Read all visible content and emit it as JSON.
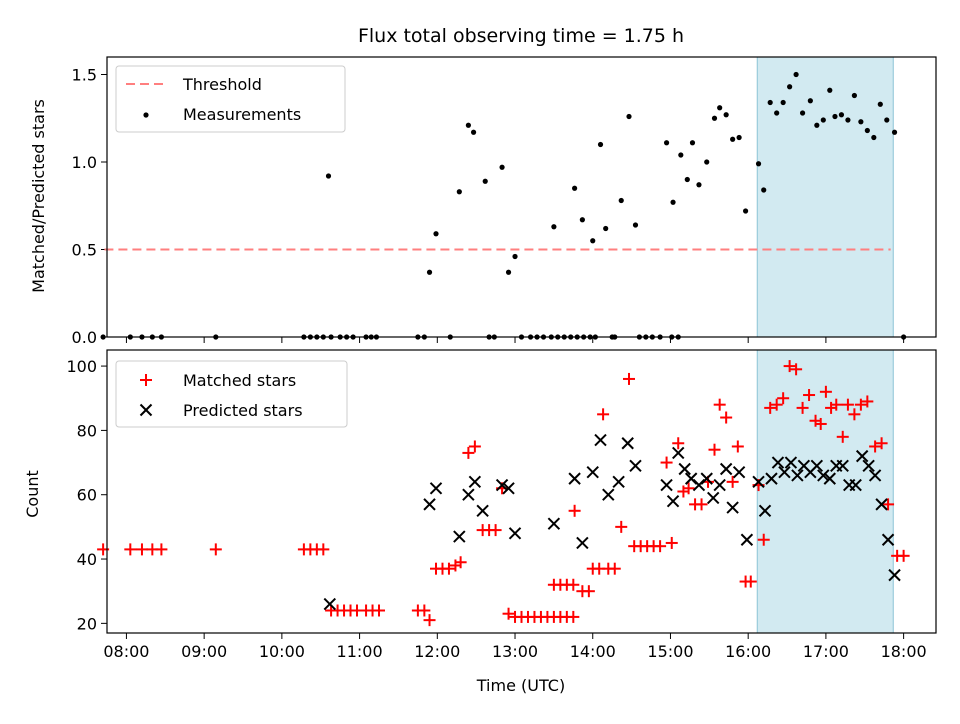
{
  "chart_data": {
    "type": "scatter",
    "title": "Flux total observing time = 1.75 h",
    "xlabel": "Time (UTC)",
    "x_ticks": [
      "08:00",
      "09:00",
      "10:00",
      "11:00",
      "12:00",
      "13:00",
      "14:00",
      "15:00",
      "16:00",
      "17:00",
      "18:00"
    ],
    "x_range": [
      "07:45",
      "18:25"
    ],
    "highlight_span": [
      "16:07",
      "17:52"
    ],
    "highlight_color": "#add8e6",
    "top_panel": {
      "ylabel": "Matched/Predicted stars",
      "ylim": [
        0,
        1.6
      ],
      "yticks": [
        "0.0",
        "0.5",
        "1.0",
        "1.5"
      ],
      "legend_position": "upper left",
      "threshold": {
        "name": "Threshold",
        "value": 0.5,
        "x_range": [
          "07:43",
          "17:50"
        ],
        "color": "#ff7f7f",
        "style": "dashed"
      },
      "measurements": {
        "name": "Measurements",
        "color": "#000000",
        "points": [
          [
            "07:42",
            0
          ],
          [
            "08:03",
            0
          ],
          [
            "08:12",
            0
          ],
          [
            "08:20",
            0
          ],
          [
            "08:27",
            0
          ],
          [
            "09:09",
            0
          ],
          [
            "10:17",
            0
          ],
          [
            "10:22",
            0
          ],
          [
            "10:27",
            0
          ],
          [
            "10:32",
            0
          ],
          [
            "10:38",
            0
          ],
          [
            "10:45",
            0
          ],
          [
            "10:50",
            0
          ],
          [
            "10:55",
            0
          ],
          [
            "11:05",
            0
          ],
          [
            "11:09",
            0
          ],
          [
            "11:13",
            0
          ],
          [
            "11:45",
            0
          ],
          [
            "11:50",
            0
          ],
          [
            "10:36",
            0.92
          ],
          [
            "11:54",
            0.37
          ],
          [
            "11:59",
            0.59
          ],
          [
            "12:17",
            0.83
          ],
          [
            "12:24",
            1.21
          ],
          [
            "12:28",
            1.17
          ],
          [
            "12:37",
            0.89
          ],
          [
            "12:50",
            0.97
          ],
          [
            "12:55",
            0.37
          ],
          [
            "13:00",
            0.46
          ],
          [
            "12:10",
            0
          ],
          [
            "12:40",
            0
          ],
          [
            "12:44",
            0
          ],
          [
            "13:05",
            0
          ],
          [
            "13:12",
            0
          ],
          [
            "13:17",
            0
          ],
          [
            "13:22",
            0
          ],
          [
            "13:28",
            0
          ],
          [
            "13:33",
            0
          ],
          [
            "13:38",
            0
          ],
          [
            "13:43",
            0
          ],
          [
            "13:48",
            0
          ],
          [
            "13:53",
            0
          ],
          [
            "13:58",
            0
          ],
          [
            "14:02",
            0
          ],
          [
            "14:15",
            0
          ],
          [
            "14:36",
            0
          ],
          [
            "14:41",
            0
          ],
          [
            "14:46",
            0
          ],
          [
            "14:52",
            0
          ],
          [
            "15:06",
            0
          ],
          [
            "14:17",
            0
          ],
          [
            "15:01",
            0
          ],
          [
            "13:30",
            0.63
          ],
          [
            "13:46",
            0.85
          ],
          [
            "13:52",
            0.67
          ],
          [
            "14:00",
            0.55
          ],
          [
            "14:06",
            1.1
          ],
          [
            "14:10",
            0.62
          ],
          [
            "14:22",
            0.78
          ],
          [
            "14:28",
            1.26
          ],
          [
            "14:33",
            0.64
          ],
          [
            "14:57",
            1.11
          ],
          [
            "15:02",
            0.77
          ],
          [
            "15:08",
            1.04
          ],
          [
            "15:13",
            0.9
          ],
          [
            "15:17",
            1.11
          ],
          [
            "15:22",
            0.87
          ],
          [
            "15:28",
            1.0
          ],
          [
            "15:34",
            1.25
          ],
          [
            "15:38",
            1.31
          ],
          [
            "15:43",
            1.27
          ],
          [
            "15:48",
            1.13
          ],
          [
            "15:53",
            1.14
          ],
          [
            "15:58",
            0.72
          ],
          [
            "16:08",
            0.99
          ],
          [
            "16:12",
            0.84
          ],
          [
            "16:17",
            1.34
          ],
          [
            "16:22",
            1.28
          ],
          [
            "16:27",
            1.34
          ],
          [
            "16:32",
            1.43
          ],
          [
            "16:37",
            1.5
          ],
          [
            "16:42",
            1.28
          ],
          [
            "16:48",
            1.35
          ],
          [
            "16:53",
            1.21
          ],
          [
            "16:58",
            1.24
          ],
          [
            "17:03",
            1.41
          ],
          [
            "17:07",
            1.26
          ],
          [
            "17:12",
            1.27
          ],
          [
            "17:17",
            1.24
          ],
          [
            "17:22",
            1.38
          ],
          [
            "17:27",
            1.23
          ],
          [
            "17:32",
            1.18
          ],
          [
            "17:37",
            1.14
          ],
          [
            "17:42",
            1.33
          ],
          [
            "17:47",
            1.24
          ],
          [
            "17:53",
            1.17
          ],
          [
            "18:00",
            0
          ]
        ]
      }
    },
    "bottom_panel": {
      "ylabel": "Count",
      "ylim": [
        17,
        105
      ],
      "yticks": [
        "20",
        "40",
        "60",
        "80",
        "100"
      ],
      "legend_position": "upper left",
      "series": [
        {
          "name": "Matched stars",
          "marker": "+",
          "color": "#ff0000",
          "points": [
            [
              "07:42",
              43
            ],
            [
              "08:03",
              43
            ],
            [
              "08:12",
              43
            ],
            [
              "08:20",
              43
            ],
            [
              "08:27",
              43
            ],
            [
              "09:09",
              43
            ],
            [
              "10:17",
              43
            ],
            [
              "10:22",
              43
            ],
            [
              "10:27",
              43
            ],
            [
              "10:32",
              43
            ],
            [
              "10:38",
              24
            ],
            [
              "10:43",
              24
            ],
            [
              "10:48",
              24
            ],
            [
              "10:53",
              24
            ],
            [
              "10:58",
              24
            ],
            [
              "11:05",
              24
            ],
            [
              "11:10",
              24
            ],
            [
              "11:15",
              24
            ],
            [
              "11:45",
              24
            ],
            [
              "11:50",
              24
            ],
            [
              "11:54",
              21
            ],
            [
              "11:59",
              37
            ],
            [
              "12:04",
              37
            ],
            [
              "12:09",
              37
            ],
            [
              "12:14",
              38
            ],
            [
              "12:18",
              39
            ],
            [
              "12:24",
              73
            ],
            [
              "12:29",
              75
            ],
            [
              "12:35",
              49
            ],
            [
              "12:40",
              49
            ],
            [
              "12:45",
              49
            ],
            [
              "12:50",
              62
            ],
            [
              "12:55",
              23
            ],
            [
              "13:00",
              22
            ],
            [
              "13:05",
              22
            ],
            [
              "13:10",
              22
            ],
            [
              "13:15",
              22
            ],
            [
              "13:20",
              22
            ],
            [
              "13:25",
              22
            ],
            [
              "13:30",
              22
            ],
            [
              "13:35",
              22
            ],
            [
              "13:40",
              22
            ],
            [
              "13:45",
              22
            ],
            [
              "13:30",
              32
            ],
            [
              "13:35",
              32
            ],
            [
              "13:40",
              32
            ],
            [
              "13:45",
              32
            ],
            [
              "13:46",
              55
            ],
            [
              "13:52",
              30
            ],
            [
              "13:57",
              30
            ],
            [
              "14:00",
              37
            ],
            [
              "14:05",
              37
            ],
            [
              "14:08",
              85
            ],
            [
              "14:12",
              37
            ],
            [
              "14:17",
              37
            ],
            [
              "14:22",
              50
            ],
            [
              "14:28",
              96
            ],
            [
              "14:32",
              44
            ],
            [
              "14:37",
              44
            ],
            [
              "14:42",
              44
            ],
            [
              "14:47",
              44
            ],
            [
              "14:52",
              44
            ],
            [
              "14:57",
              70
            ],
            [
              "15:01",
              45
            ],
            [
              "15:06",
              76
            ],
            [
              "15:10",
              61
            ],
            [
              "15:14",
              62
            ],
            [
              "15:19",
              57
            ],
            [
              "15:24",
              57
            ],
            [
              "15:29",
              64
            ],
            [
              "15:34",
              74
            ],
            [
              "15:38",
              88
            ],
            [
              "15:43",
              84
            ],
            [
              "15:48",
              64
            ],
            [
              "15:52",
              75
            ],
            [
              "15:58",
              33
            ],
            [
              "16:02",
              33
            ],
            [
              "16:08",
              63
            ],
            [
              "16:12",
              46
            ],
            [
              "16:17",
              87
            ],
            [
              "16:22",
              88
            ],
            [
              "16:27",
              90
            ],
            [
              "16:32",
              100
            ],
            [
              "16:37",
              99
            ],
            [
              "16:42",
              87
            ],
            [
              "16:47",
              91
            ],
            [
              "16:52",
              83
            ],
            [
              "16:56",
              82
            ],
            [
              "17:00",
              92
            ],
            [
              "17:04",
              87
            ],
            [
              "17:08",
              88
            ],
            [
              "17:13",
              78
            ],
            [
              "17:17",
              88
            ],
            [
              "17:22",
              85
            ],
            [
              "17:27",
              88
            ],
            [
              "17:32",
              89
            ],
            [
              "17:38",
              75
            ],
            [
              "17:43",
              76
            ],
            [
              "17:48",
              57
            ],
            [
              "17:55",
              41
            ],
            [
              "18:00",
              41
            ]
          ]
        },
        {
          "name": "Predicted stars",
          "marker": "x",
          "color": "#000000",
          "points": [
            [
              "10:37",
              26
            ],
            [
              "11:54",
              57
            ],
            [
              "11:59",
              62
            ],
            [
              "12:17",
              47
            ],
            [
              "12:24",
              60
            ],
            [
              "12:29",
              64
            ],
            [
              "12:35",
              55
            ],
            [
              "12:50",
              63
            ],
            [
              "12:55",
              62
            ],
            [
              "13:00",
              48
            ],
            [
              "13:30",
              51
            ],
            [
              "13:46",
              65
            ],
            [
              "13:52",
              45
            ],
            [
              "14:00",
              67
            ],
            [
              "14:06",
              77
            ],
            [
              "14:12",
              60
            ],
            [
              "14:20",
              64
            ],
            [
              "14:27",
              76
            ],
            [
              "14:33",
              69
            ],
            [
              "14:57",
              63
            ],
            [
              "15:02",
              58
            ],
            [
              "15:06",
              73
            ],
            [
              "15:11",
              68
            ],
            [
              "15:16",
              65
            ],
            [
              "15:22",
              63
            ],
            [
              "15:28",
              65
            ],
            [
              "15:33",
              59
            ],
            [
              "15:38",
              63
            ],
            [
              "15:43",
              68
            ],
            [
              "15:48",
              56
            ],
            [
              "15:53",
              67
            ],
            [
              "15:59",
              46
            ],
            [
              "16:08",
              64
            ],
            [
              "16:13",
              55
            ],
            [
              "16:18",
              65
            ],
            [
              "16:23",
              70
            ],
            [
              "16:28",
              67
            ],
            [
              "16:33",
              70
            ],
            [
              "16:38",
              66
            ],
            [
              "16:43",
              69
            ],
            [
              "16:48",
              67
            ],
            [
              "16:53",
              69
            ],
            [
              "16:58",
              66
            ],
            [
              "17:03",
              65
            ],
            [
              "17:08",
              69
            ],
            [
              "17:13",
              69
            ],
            [
              "17:18",
              63
            ],
            [
              "17:23",
              63
            ],
            [
              "17:28",
              72
            ],
            [
              "17:33",
              69
            ],
            [
              "17:38",
              66
            ],
            [
              "17:43",
              57
            ],
            [
              "17:48",
              46
            ],
            [
              "17:53",
              35
            ]
          ]
        }
      ]
    }
  }
}
